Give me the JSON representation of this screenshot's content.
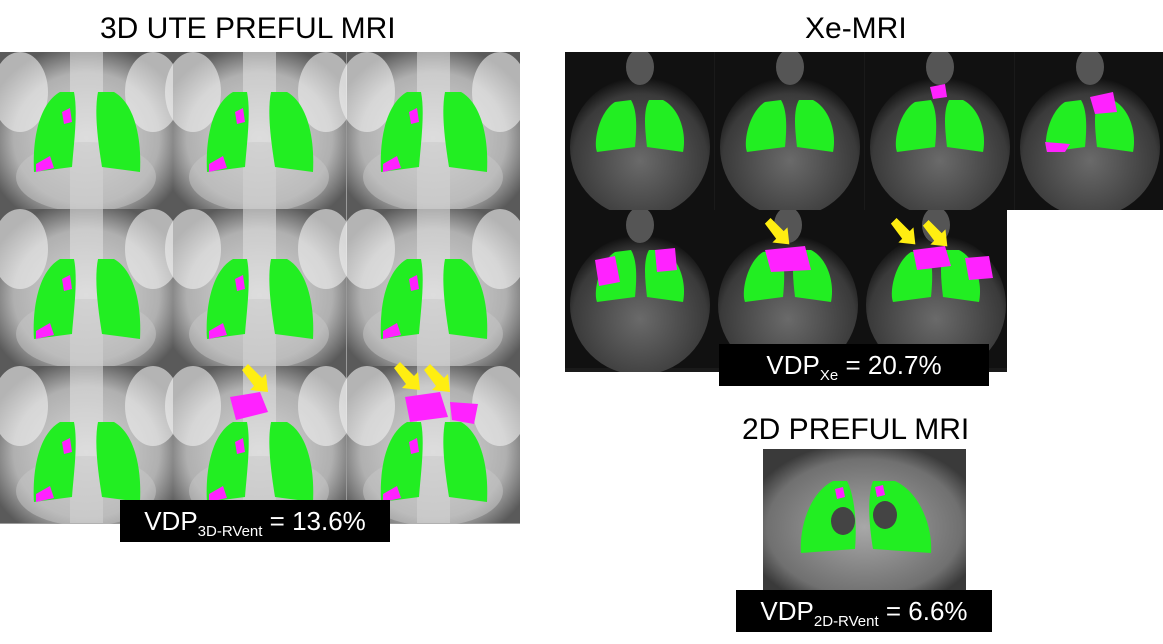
{
  "titles": {
    "ute": "3D UTE PREFUL MRI",
    "xe": "Xe-MRI",
    "preful2d": "2D PREFUL MRI"
  },
  "labels": {
    "ute": {
      "prefix": "VDP",
      "sub": "3D-RVent",
      "value": " = 13.6%"
    },
    "xe": {
      "prefix": "VDP",
      "sub": "Xe",
      "value": " = 20.7%"
    },
    "preful2d": {
      "prefix": "VDP",
      "sub": "2D-RVent",
      "value": " = 6.6%"
    }
  },
  "colors": {
    "ventilated": "#22ee22",
    "defect": "#ff22ff",
    "arrow": "#ffee11",
    "label_bg": "#000000",
    "label_text": "#ffffff"
  }
}
